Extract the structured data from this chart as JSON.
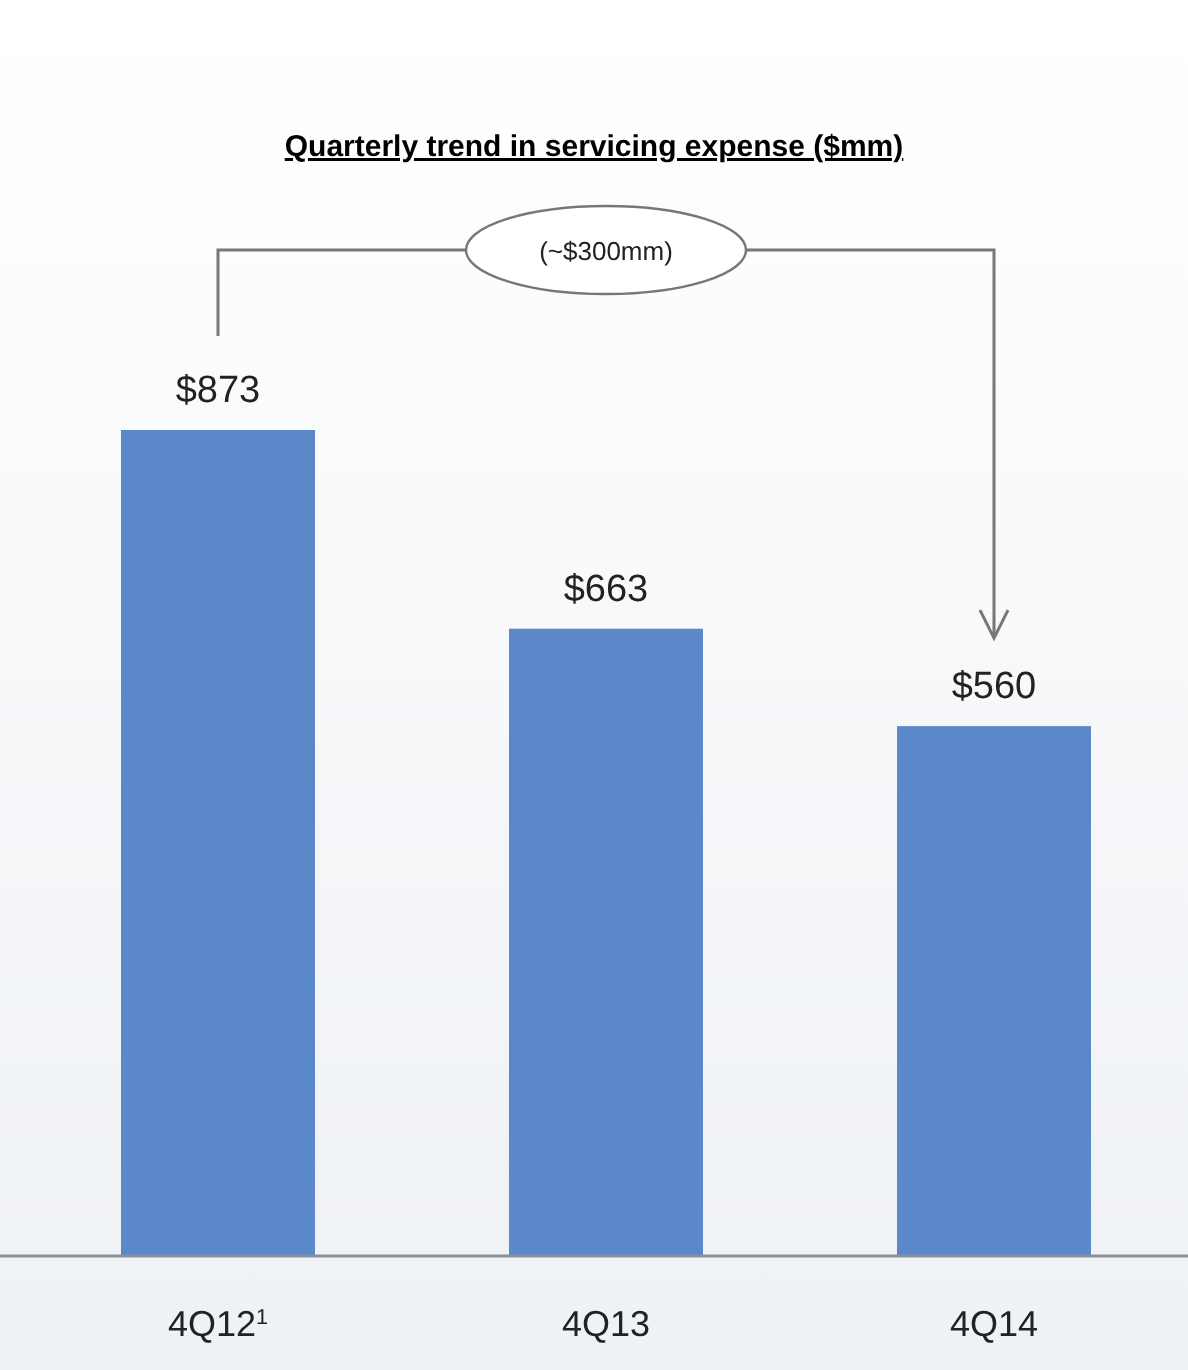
{
  "chart_data": {
    "type": "bar",
    "title": "Quarterly trend in servicing expense ($mm)",
    "categories": [
      "4Q12$^{1}$",
      "4Q13",
      "4Q14"
    ],
    "values": [
      873,
      663,
      560
    ],
    "color": "#5b88c8",
    "value_labels": [
      "$873",
      "$663",
      "$560"
    ],
    "annotations": [
      "(~$300mm)"
    ]
  }
}
